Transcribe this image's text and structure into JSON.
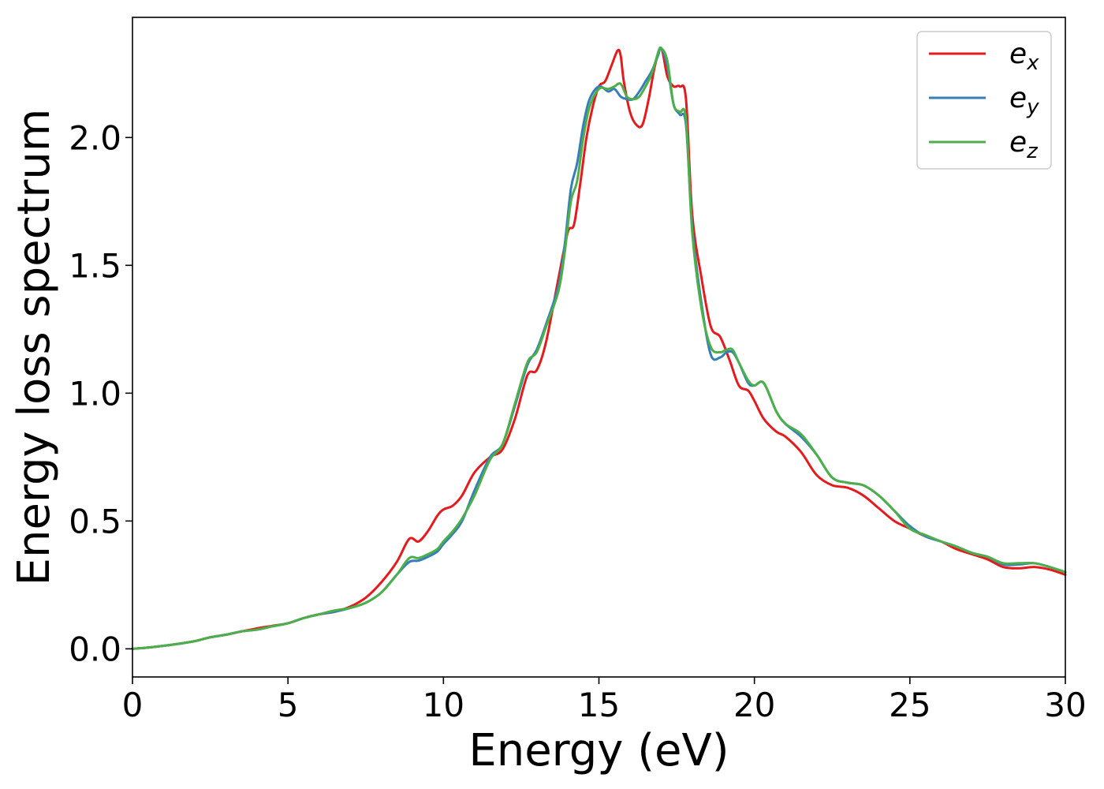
{
  "chart_data": {
    "type": "line",
    "title": "",
    "xlabel": "Energy (eV)",
    "ylabel": "Energy loss spectrum",
    "xlim": [
      0,
      30
    ],
    "ylim": [
      -0.11,
      2.47
    ],
    "xticks": [
      0,
      5,
      10,
      15,
      20,
      25,
      30
    ],
    "xtick_labels": [
      "0",
      "5",
      "10",
      "15",
      "20",
      "25",
      "30"
    ],
    "yticks": [
      0.0,
      0.5,
      1.0,
      1.5,
      2.0
    ],
    "ytick_labels": [
      "0.0",
      "0.5",
      "1.0",
      "1.5",
      "2.0"
    ],
    "grid": false,
    "legend_position": "top-right",
    "series": [
      {
        "name": "e_x",
        "label_base": "e",
        "label_sub": "x",
        "color": "#e41a1c",
        "x": [
          0,
          0.5,
          1,
          1.5,
          2,
          2.5,
          3,
          3.5,
          4,
          4.5,
          5,
          5.5,
          6,
          6.5,
          7,
          7.5,
          8,
          8.5,
          8.9,
          9.2,
          9.5,
          9.8,
          10.0,
          10.3,
          10.6,
          11.0,
          11.5,
          11.9,
          12.3,
          12.7,
          13.0,
          13.3,
          13.7,
          14.0,
          14.2,
          14.4,
          14.6,
          14.8,
          15.0,
          15.2,
          15.4,
          15.6,
          15.7,
          15.8,
          16.0,
          16.2,
          16.4,
          16.6,
          16.8,
          17.0,
          17.2,
          17.4,
          17.6,
          17.8,
          18.0,
          18.3,
          18.6,
          18.9,
          19.2,
          19.5,
          19.8,
          20.0,
          20.3,
          20.7,
          21.0,
          21.5,
          22.0,
          22.5,
          23.0,
          23.5,
          24.0,
          24.5,
          25.0,
          25.5,
          26.0,
          26.5,
          27.0,
          27.5,
          28.0,
          28.5,
          29.0,
          29.5,
          30.0
        ],
        "y": [
          0.0,
          0.005,
          0.012,
          0.02,
          0.03,
          0.045,
          0.055,
          0.068,
          0.08,
          0.09,
          0.1,
          0.12,
          0.135,
          0.145,
          0.165,
          0.2,
          0.26,
          0.34,
          0.43,
          0.42,
          0.46,
          0.52,
          0.545,
          0.56,
          0.6,
          0.69,
          0.75,
          0.78,
          0.9,
          1.07,
          1.09,
          1.2,
          1.45,
          1.63,
          1.66,
          1.82,
          2.0,
          2.12,
          2.2,
          2.22,
          2.28,
          2.34,
          2.32,
          2.22,
          2.1,
          2.05,
          2.05,
          2.15,
          2.28,
          2.35,
          2.24,
          2.2,
          2.2,
          2.15,
          1.7,
          1.45,
          1.26,
          1.22,
          1.13,
          1.03,
          1.01,
          0.97,
          0.9,
          0.85,
          0.83,
          0.77,
          0.68,
          0.64,
          0.63,
          0.6,
          0.55,
          0.5,
          0.47,
          0.44,
          0.42,
          0.39,
          0.37,
          0.35,
          0.32,
          0.315,
          0.32,
          0.31,
          0.29
        ]
      },
      {
        "name": "e_y",
        "label_base": "e",
        "label_sub": "y",
        "color": "#377eb8",
        "x": [
          0,
          0.5,
          1,
          1.5,
          2,
          2.5,
          3,
          3.5,
          4,
          4.5,
          5,
          5.5,
          6,
          6.5,
          7,
          7.5,
          8,
          8.5,
          8.9,
          9.2,
          9.5,
          9.8,
          10.0,
          10.3,
          10.6,
          11.0,
          11.5,
          11.9,
          12.3,
          12.7,
          13.0,
          13.3,
          13.7,
          13.9,
          14.1,
          14.3,
          14.5,
          14.7,
          15.0,
          15.3,
          15.5,
          15.7,
          15.9,
          16.1,
          16.3,
          16.5,
          16.7,
          16.9,
          17.0,
          17.2,
          17.4,
          17.6,
          17.8,
          18.0,
          18.3,
          18.6,
          18.9,
          19.1,
          19.3,
          19.5,
          19.8,
          20.0,
          20.3,
          20.7,
          21.0,
          21.5,
          22.0,
          22.5,
          23.0,
          23.5,
          24.0,
          24.5,
          25.0,
          25.5,
          26.0,
          26.5,
          27.0,
          27.5,
          28.0,
          28.5,
          29.0,
          29.5,
          30.0
        ],
        "y": [
          0.0,
          0.005,
          0.012,
          0.02,
          0.03,
          0.045,
          0.055,
          0.068,
          0.075,
          0.088,
          0.1,
          0.12,
          0.135,
          0.145,
          0.16,
          0.18,
          0.22,
          0.29,
          0.34,
          0.345,
          0.36,
          0.38,
          0.41,
          0.45,
          0.5,
          0.62,
          0.75,
          0.8,
          0.95,
          1.11,
          1.17,
          1.27,
          1.42,
          1.58,
          1.8,
          1.9,
          2.05,
          2.15,
          2.2,
          2.18,
          2.19,
          2.16,
          2.15,
          2.15,
          2.18,
          2.22,
          2.26,
          2.32,
          2.35,
          2.28,
          2.13,
          2.09,
          2.05,
          1.65,
          1.35,
          1.15,
          1.14,
          1.16,
          1.16,
          1.12,
          1.04,
          1.03,
          1.04,
          0.93,
          0.88,
          0.83,
          0.76,
          0.67,
          0.65,
          0.64,
          0.6,
          0.54,
          0.48,
          0.44,
          0.42,
          0.4,
          0.375,
          0.36,
          0.33,
          0.33,
          0.335,
          0.32,
          0.3
        ]
      },
      {
        "name": "e_z",
        "label_base": "e",
        "label_sub": "z",
        "color": "#4daf4a",
        "x": [
          0,
          0.5,
          1,
          1.5,
          2,
          2.5,
          3,
          3.5,
          4,
          4.5,
          5,
          5.5,
          6,
          6.5,
          7,
          7.5,
          8,
          8.5,
          8.9,
          9.2,
          9.5,
          9.8,
          10.0,
          10.3,
          10.6,
          11.0,
          11.5,
          11.9,
          12.3,
          12.7,
          13.0,
          13.3,
          13.7,
          13.9,
          14.1,
          14.3,
          14.5,
          14.7,
          15.0,
          15.3,
          15.5,
          15.7,
          15.9,
          16.1,
          16.3,
          16.5,
          16.7,
          16.9,
          17.0,
          17.2,
          17.4,
          17.6,
          17.8,
          18.0,
          18.3,
          18.6,
          18.9,
          19.1,
          19.3,
          19.5,
          19.8,
          20.0,
          20.3,
          20.7,
          21.0,
          21.5,
          22.0,
          22.5,
          23.0,
          23.5,
          24.0,
          24.5,
          25.0,
          25.5,
          26.0,
          26.5,
          27.0,
          27.5,
          28.0,
          28.5,
          29.0,
          29.5,
          30.0
        ],
        "y": [
          0.0,
          0.005,
          0.012,
          0.02,
          0.03,
          0.045,
          0.055,
          0.068,
          0.075,
          0.088,
          0.1,
          0.12,
          0.135,
          0.15,
          0.16,
          0.18,
          0.22,
          0.29,
          0.355,
          0.355,
          0.37,
          0.39,
          0.42,
          0.46,
          0.51,
          0.6,
          0.74,
          0.8,
          0.96,
          1.12,
          1.16,
          1.26,
          1.4,
          1.55,
          1.75,
          1.83,
          2.0,
          2.12,
          2.19,
          2.19,
          2.2,
          2.21,
          2.16,
          2.15,
          2.16,
          2.2,
          2.25,
          2.33,
          2.35,
          2.3,
          2.13,
          2.1,
          2.07,
          1.63,
          1.33,
          1.18,
          1.16,
          1.17,
          1.17,
          1.12,
          1.05,
          1.03,
          1.04,
          0.93,
          0.88,
          0.84,
          0.76,
          0.67,
          0.65,
          0.64,
          0.6,
          0.54,
          0.47,
          0.445,
          0.42,
          0.4,
          0.375,
          0.36,
          0.335,
          0.335,
          0.335,
          0.32,
          0.3
        ]
      }
    ]
  }
}
